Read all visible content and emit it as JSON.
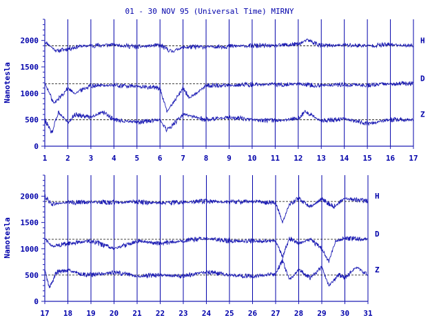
{
  "chart_data": [
    {
      "type": "line",
      "title": "01 - 30 NOV 95 (Universal Time) MIRNY",
      "ylabel": "Nanotesla",
      "ylim": [
        0,
        2400
      ],
      "yticks": [
        0,
        500,
        1000,
        1500,
        2000
      ],
      "xlim": [
        1,
        17
      ],
      "xticks": [
        "1",
        "2",
        "3",
        "4",
        "5",
        "6",
        "7",
        "8",
        "9",
        "10",
        "11",
        "12",
        "13",
        "14",
        "15",
        "16",
        "17"
      ],
      "grid": "vertical lines at each day",
      "reference_lines": [
        1900,
        1180,
        500
      ],
      "series": [
        {
          "name": "H",
          "x": [
            1,
            1.5,
            2,
            2.5,
            3,
            4,
            5,
            6,
            6.5,
            7,
            8,
            9,
            10,
            11,
            12,
            12.4,
            13,
            14,
            15,
            16,
            17
          ],
          "values": [
            1980,
            1800,
            1840,
            1890,
            1900,
            1920,
            1880,
            1910,
            1790,
            1870,
            1880,
            1890,
            1900,
            1900,
            1930,
            2010,
            1900,
            1910,
            1900,
            1920,
            1900
          ]
        },
        {
          "name": "D",
          "x": [
            1,
            1.4,
            1.7,
            2,
            2.3,
            3,
            4,
            5,
            6,
            6.3,
            7,
            7.3,
            8,
            9,
            10,
            11,
            12,
            13,
            14,
            15,
            16,
            17
          ],
          "values": [
            1200,
            800,
            950,
            1100,
            1000,
            1150,
            1150,
            1130,
            1100,
            650,
            1100,
            900,
            1150,
            1150,
            1170,
            1160,
            1180,
            1150,
            1170,
            1150,
            1180,
            1180
          ]
        },
        {
          "name": "Z",
          "x": [
            1,
            1.3,
            1.6,
            2,
            2.3,
            3,
            3.5,
            4,
            5,
            6,
            6.3,
            7,
            8,
            9,
            10,
            11,
            12,
            12.3,
            13,
            14,
            15,
            16,
            17
          ],
          "values": [
            500,
            250,
            650,
            450,
            600,
            550,
            650,
            500,
            450,
            500,
            300,
            600,
            500,
            550,
            500,
            480,
            520,
            650,
            480,
            520,
            420,
            500,
            500
          ]
        }
      ]
    },
    {
      "type": "line",
      "title": "",
      "ylabel": "Nanotesla",
      "ylim": [
        0,
        2400
      ],
      "yticks": [
        0,
        500,
        1000,
        1500,
        2000
      ],
      "xlim": [
        17,
        31
      ],
      "xticks": [
        "17",
        "18",
        "19",
        "20",
        "21",
        "22",
        "23",
        "24",
        "25",
        "26",
        "27",
        "28",
        "29",
        "30",
        "31"
      ],
      "grid": "vertical lines at each day",
      "reference_lines": [
        1900,
        1180,
        500
      ],
      "series": [
        {
          "name": "H",
          "x": [
            17,
            17.3,
            18,
            19,
            20,
            21,
            22,
            23,
            24,
            25,
            26,
            27,
            27.3,
            27.6,
            28,
            28.5,
            29,
            29.5,
            30,
            31
          ],
          "values": [
            2000,
            1850,
            1880,
            1890,
            1880,
            1890,
            1870,
            1890,
            1900,
            1890,
            1900,
            1880,
            1500,
            1850,
            1950,
            1800,
            1950,
            1800,
            1960,
            1900
          ]
        },
        {
          "name": "D",
          "x": [
            17,
            17.3,
            18,
            19,
            20,
            21,
            22,
            23,
            24,
            25,
            26,
            27,
            27.3,
            27.6,
            28,
            28.5,
            29,
            29.3,
            29.6,
            30,
            31
          ],
          "values": [
            1200,
            1050,
            1100,
            1150,
            1000,
            1150,
            1100,
            1150,
            1200,
            1150,
            1150,
            1150,
            850,
            1200,
            1100,
            1180,
            1000,
            750,
            1150,
            1200,
            1180
          ]
        },
        {
          "name": "Z",
          "x": [
            17,
            17.2,
            17.5,
            18,
            18.5,
            19,
            20,
            21,
            22,
            23,
            24,
            25,
            26,
            27,
            27.3,
            27.6,
            28,
            28.5,
            29,
            29.3,
            29.7,
            30,
            30.5,
            31
          ],
          "values": [
            600,
            250,
            550,
            600,
            520,
            500,
            550,
            480,
            500,
            480,
            560,
            500,
            480,
            520,
            780,
            400,
            600,
            450,
            650,
            300,
            500,
            450,
            650,
            500
          ]
        }
      ]
    }
  ],
  "colors": {
    "trace": "#1c1cb4",
    "axis": "#1c1cb4",
    "grid": "#0000aa",
    "label": "#0000aa",
    "reference": "#000000",
    "background": "#ffffff"
  }
}
